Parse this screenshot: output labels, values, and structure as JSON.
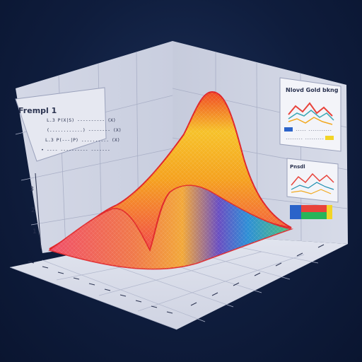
{
  "left_panel": {
    "title": "Frempl 1",
    "lines": [
      "L.3 P(X|S) ---------- (X)",
      "(............) -------- (X)",
      "L.3 P(---|P) .......... (X)",
      "• ---- ---------- -------"
    ]
  },
  "right_panel_1": {
    "title": "Nlovd Gold bkng",
    "legend": [
      "----- -----------",
      "-------- ---------"
    ],
    "colors": [
      "#e8433b",
      "#3ba7b5",
      "#f2a91f",
      "#2b63c9",
      "#f2d427"
    ]
  },
  "right_panel_2": {
    "title": "Pnsdl",
    "colors": [
      "#e8433b",
      "#1f8fb0",
      "#f2a91f"
    ]
  },
  "color_bar": {
    "colors": [
      "#2b63c9",
      "#e8433b",
      "#27b45a",
      "#f2d427"
    ]
  },
  "chart_data": {
    "type": "surface",
    "title": "",
    "xlabel": "",
    "ylabel": "",
    "zlabel": "",
    "z_ticks": [
      "3",
      "2",
      "1"
    ],
    "description": "3D surface with two peaks over a gridded floor",
    "palette": [
      "#e8433b",
      "#f27a2a",
      "#f2b21f",
      "#e8e030",
      "#6a4fc2",
      "#2e8fd6",
      "#39c27a"
    ]
  }
}
